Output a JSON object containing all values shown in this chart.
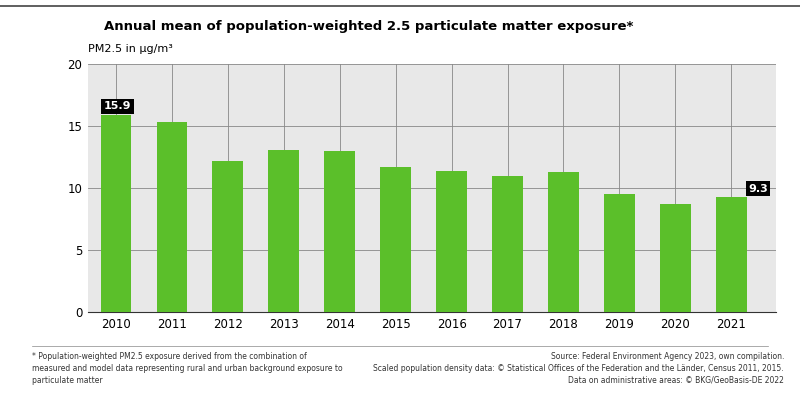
{
  "title": "Annual mean of population-weighted 2.5 particulate matter exposure*",
  "ylabel": "PM2.5 in µg/m³",
  "years": [
    2010,
    2011,
    2012,
    2013,
    2014,
    2015,
    2016,
    2017,
    2018,
    2019,
    2020,
    2021
  ],
  "values": [
    15.9,
    15.3,
    12.2,
    13.1,
    13.0,
    11.7,
    11.4,
    11.0,
    11.3,
    9.5,
    8.7,
    9.3
  ],
  "bar_color": "#5bbf2a",
  "ylim": [
    0,
    20
  ],
  "yticks": [
    0,
    5,
    10,
    15,
    20
  ],
  "footnote_left": "* Population-weighted PM2.5 exposure derived from the combination of\nmeasured and model data representing rural and urban background exposure to\nparticulate matter",
  "footnote_right": "Source: Federal Environment Agency 2023, own compilation.\nScaled population density data: © Statistical Offices of the Federation and the Länder, Census 2011, 2015.\nData on administrative areas: © BKG/GeoBasis-DE 2022",
  "bg_color": "#ffffff",
  "plot_bg_color": "#e8e8e8"
}
